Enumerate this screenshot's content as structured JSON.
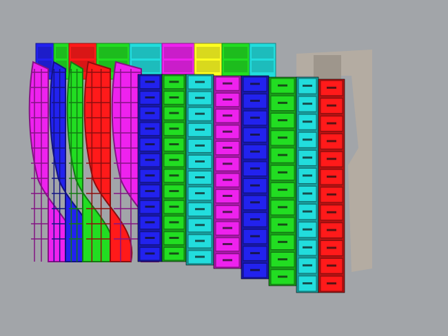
{
  "viewport": {
    "background": "#a2a5a9"
  },
  "colors": {
    "red": "#ff1a1a",
    "green": "#22dd22",
    "blue": "#2222ee",
    "magenta": "#ee22ee",
    "cyan": "#22dddd",
    "yellow": "#ffff22",
    "wall": "#b4aca2"
  },
  "back_row": [
    "blue",
    "green",
    "red",
    "green",
    "cyan",
    "magenta",
    "yellow",
    "green",
    "cyan"
  ],
  "hull_bands": [
    "magenta",
    "blue",
    "green",
    "red",
    "magenta"
  ],
  "front_columns": [
    "blue",
    "green",
    "cyan",
    "magenta",
    "blue",
    "green",
    "cyan",
    "red"
  ]
}
